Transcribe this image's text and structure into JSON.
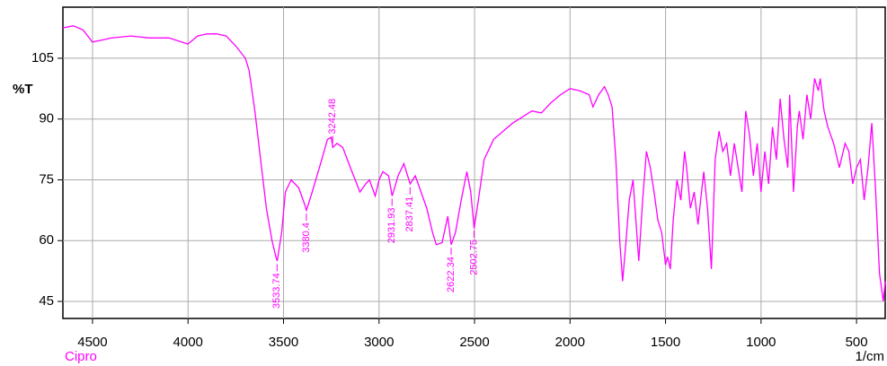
{
  "chart_data": {
    "type": "line",
    "title": null,
    "xlabel": "1/cm",
    "ylabel": "%T",
    "xlim": [
      4655,
      350
    ],
    "ylim": [
      40.8,
      117.6
    ],
    "xticks": [
      4500,
      4000,
      3500,
      3000,
      2500,
      2000,
      1500,
      1000,
      500
    ],
    "yticks": [
      105,
      90,
      75,
      60,
      45
    ],
    "grid": true,
    "x": [
      4655,
      4600,
      4550,
      4500,
      4450,
      4400,
      4300,
      4200,
      4100,
      4000,
      3950,
      3900,
      3850,
      3800,
      3750,
      3700,
      3680,
      3650,
      3620,
      3590,
      3560,
      3540,
      3533,
      3510,
      3490,
      3460,
      3420,
      3390,
      3380,
      3350,
      3300,
      3270,
      3250,
      3242,
      3220,
      3190,
      3150,
      3100,
      3070,
      3050,
      3020,
      3000,
      2980,
      2950,
      2931,
      2900,
      2870,
      2850,
      2837,
      2810,
      2780,
      2750,
      2720,
      2700,
      2670,
      2640,
      2622,
      2600,
      2570,
      2540,
      2520,
      2502,
      2480,
      2450,
      2400,
      2350,
      2300,
      2250,
      2200,
      2150,
      2100,
      2050,
      2000,
      1950,
      1900,
      1880,
      1850,
      1820,
      1800,
      1780,
      1760,
      1740,
      1725,
      1710,
      1690,
      1670,
      1655,
      1640,
      1620,
      1600,
      1580,
      1560,
      1540,
      1520,
      1500,
      1490,
      1475,
      1460,
      1440,
      1420,
      1400,
      1390,
      1370,
      1350,
      1330,
      1300,
      1280,
      1260,
      1240,
      1220,
      1200,
      1180,
      1160,
      1140,
      1120,
      1100,
      1080,
      1060,
      1040,
      1020,
      1000,
      980,
      960,
      940,
      920,
      900,
      880,
      860,
      850,
      830,
      810,
      800,
      780,
      760,
      740,
      720,
      700,
      690,
      670,
      650,
      620,
      590,
      560,
      540,
      520,
      500,
      480,
      460,
      440,
      420,
      400,
      380,
      360,
      350
    ],
    "series": [
      {
        "name": "Cipro",
        "color": "#ff00ff",
        "values": [
          112.5,
          113,
          112,
          109,
          109.5,
          110,
          110.5,
          110,
          110,
          108.5,
          110.5,
          111,
          111,
          110.5,
          108,
          105,
          102,
          92,
          80,
          68,
          60,
          56,
          55,
          62,
          72,
          75,
          73,
          69,
          67.5,
          72,
          80,
          85,
          85.5,
          83,
          84,
          83,
          78,
          72,
          74,
          75,
          71,
          75,
          77,
          76,
          71,
          76,
          79,
          76,
          74,
          76,
          72,
          68,
          62,
          59,
          59.5,
          66,
          59,
          62,
          70,
          77,
          72,
          63,
          70,
          80,
          85,
          87,
          89,
          90.5,
          92,
          91.5,
          94,
          96,
          97.5,
          97,
          96,
          93,
          96,
          98,
          96,
          93,
          80,
          60,
          50,
          58,
          70,
          75,
          65,
          55,
          70,
          82,
          78,
          72,
          65,
          62,
          54,
          56,
          53,
          65,
          75,
          70,
          82,
          78,
          68,
          72,
          64,
          77,
          68,
          53,
          80,
          87,
          82,
          84,
          76,
          84,
          78,
          72,
          92,
          86,
          76,
          84,
          72,
          82,
          74,
          88,
          80,
          95,
          85,
          78,
          96,
          72,
          88,
          92,
          85,
          96,
          90,
          100,
          97,
          100,
          92,
          88,
          84,
          78,
          84,
          82,
          74,
          78,
          80,
          70,
          78,
          89,
          72,
          52,
          45,
          50
        ]
      }
    ],
    "peaks": [
      3533.74,
      3380.4,
      3242.48,
      2931.93,
      2837.41,
      2622.34,
      2502.75
    ]
  }
}
